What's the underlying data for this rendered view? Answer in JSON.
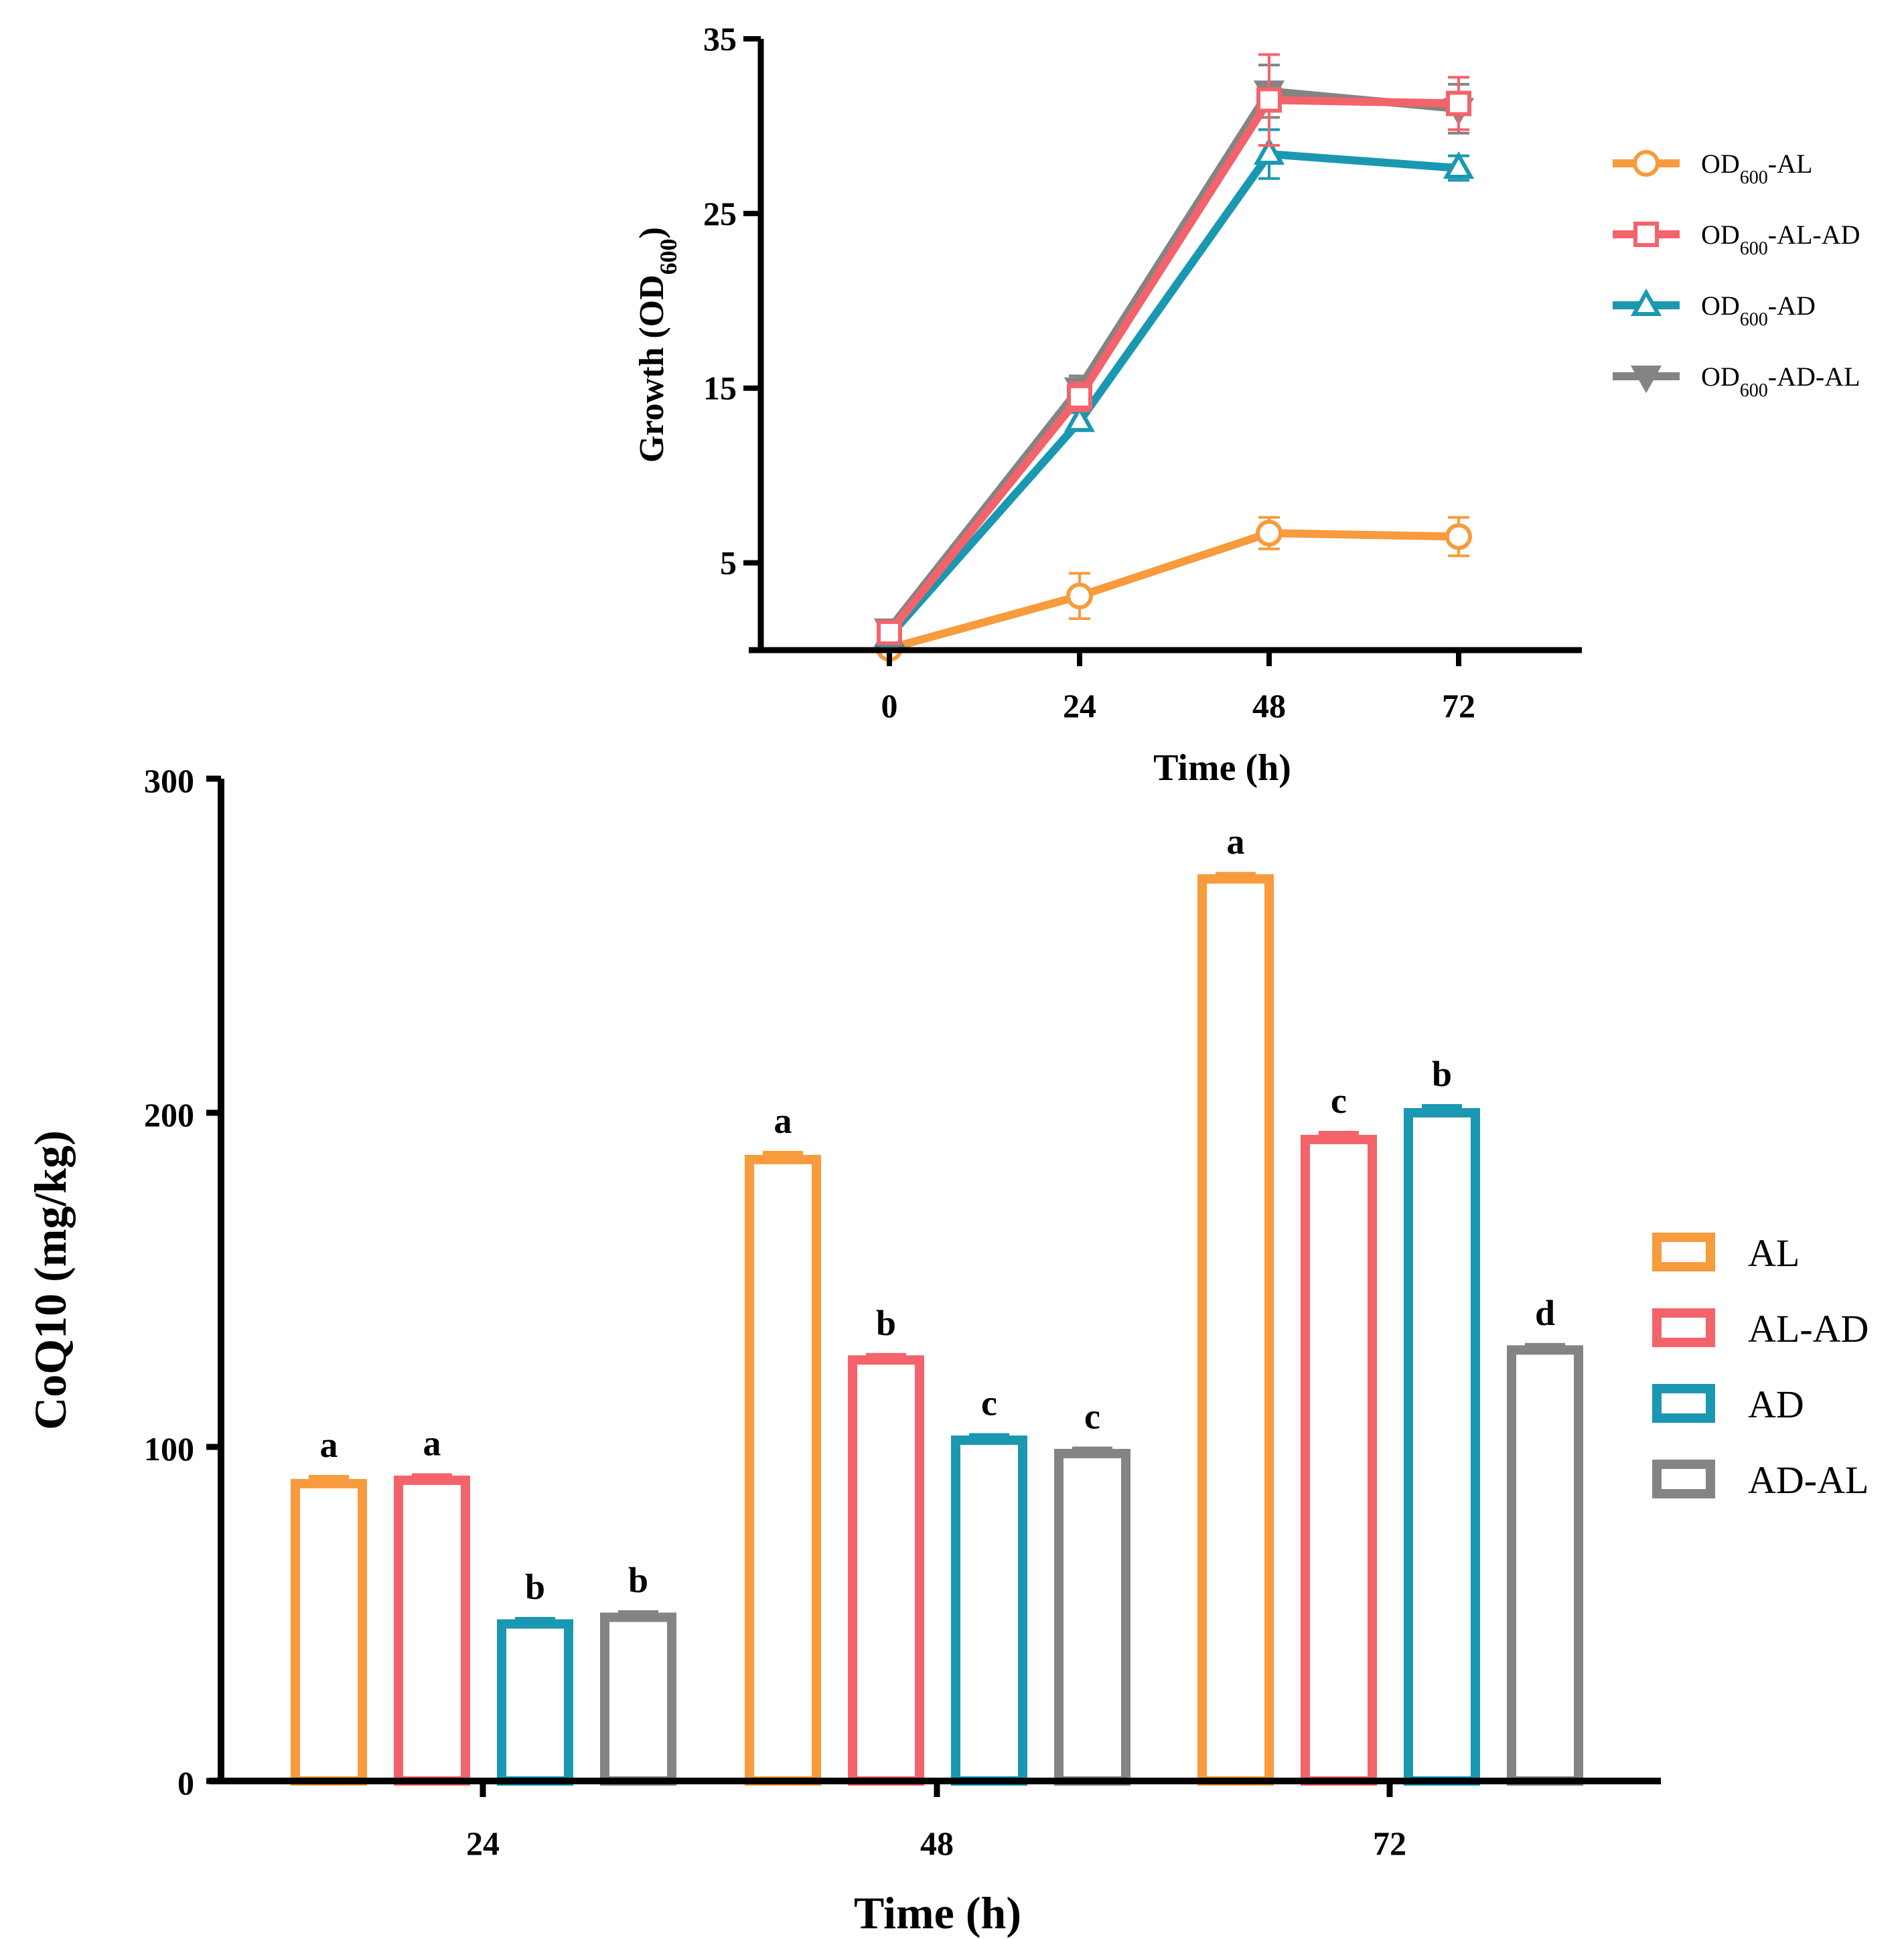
{
  "chart_data": [
    {
      "type": "line",
      "xlabel": "Time (h)",
      "ylabel": "Growth (OD",
      "ylabel_sub": "600",
      "ylabel_end": ")",
      "x": [
        0,
        24,
        48,
        72
      ],
      "xticks": [
        "0",
        "24",
        "48",
        "72"
      ],
      "ylim": [
        0,
        35
      ],
      "yticks": [
        "5",
        "15",
        "25",
        "35"
      ],
      "series": [
        {
          "name": "OD600-AL",
          "legend_prefix": "OD",
          "legend_sub": "600",
          "legend_suffix": "-AL",
          "marker": "circle",
          "color": "#F79B3C",
          "values": [
            0.1,
            3.1,
            6.7,
            6.5
          ],
          "errors": [
            0.3,
            1.3,
            0.9,
            1.1
          ]
        },
        {
          "name": "OD600-AL-AD",
          "legend_prefix": "OD",
          "legend_sub": "600",
          "legend_suffix": "-AL-AD",
          "marker": "square",
          "color": "#F4636B",
          "values": [
            1.0,
            14.5,
            31.5,
            31.3
          ],
          "errors": [
            0.3,
            0.8,
            2.6,
            1.5
          ]
        },
        {
          "name": "OD600-AD",
          "legend_prefix": "OD",
          "legend_sub": "600",
          "legend_suffix": "-AD",
          "marker": "triangle-up",
          "color": "#1A98B1",
          "values": [
            0.8,
            13.1,
            28.4,
            27.6
          ],
          "errors": [
            0.3,
            0.5,
            1.4,
            0.7
          ]
        },
        {
          "name": "OD600-AD-AL",
          "legend_prefix": "OD",
          "legend_sub": "600",
          "legend_suffix": "-AD-AL",
          "marker": "triangle-down",
          "color": "#848484",
          "values": [
            1.2,
            15.0,
            32.0,
            31.0
          ],
          "errors": [
            0.3,
            0.7,
            1.5,
            1.4
          ]
        }
      ]
    },
    {
      "type": "bar",
      "xlabel": "Time (h)",
      "ylabel": "CoQ10 (mg/kg)",
      "categories": [
        "24",
        "48",
        "72"
      ],
      "ylim": [
        0,
        300
      ],
      "yticks": [
        "0",
        "100",
        "200",
        "300"
      ],
      "series": [
        {
          "name": "AL",
          "color": "#F79B3C",
          "values": [
            89,
            186,
            270
          ],
          "errors": [
            2,
            2,
            1.5
          ],
          "letters": [
            "a",
            "a",
            "a"
          ]
        },
        {
          "name": "AL-AD",
          "color": "#F4636B",
          "values": [
            90,
            126,
            192
          ],
          "errors": [
            1.5,
            1.5,
            2
          ],
          "letters": [
            "a",
            "b",
            "c"
          ]
        },
        {
          "name": "AD",
          "color": "#1A98B1",
          "values": [
            47,
            102,
            200
          ],
          "errors": [
            1.5,
            1.5,
            2
          ],
          "letters": [
            "b",
            "c",
            "b"
          ]
        },
        {
          "name": "AD-AL",
          "color": "#848484",
          "values": [
            49,
            98,
            129
          ],
          "errors": [
            1.5,
            1.5,
            1.5
          ],
          "letters": [
            "b",
            "c",
            "d"
          ]
        }
      ]
    }
  ]
}
